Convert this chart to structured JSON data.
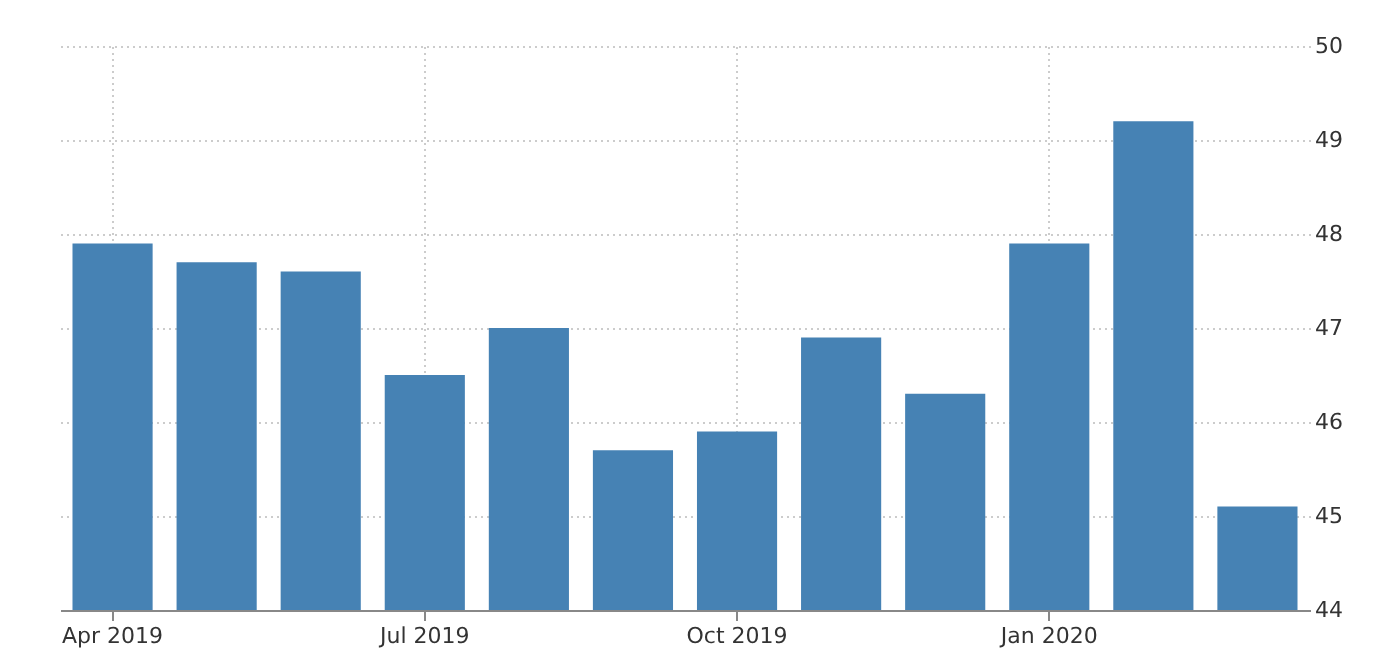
{
  "chart_data": {
    "type": "bar",
    "categories": [
      "Apr 2019",
      null,
      null,
      "Jul 2019",
      null,
      null,
      "Oct 2019",
      null,
      null,
      "Jan 2020",
      null,
      null
    ],
    "values": [
      47.9,
      47.7,
      47.6,
      46.5,
      47.0,
      45.7,
      45.9,
      46.9,
      46.3,
      47.9,
      49.2,
      45.1
    ],
    "color": "#4682b4",
    "ylim": [
      44,
      50
    ],
    "yticks": [
      44,
      45,
      46,
      47,
      48,
      49,
      50
    ],
    "grid": true
  }
}
